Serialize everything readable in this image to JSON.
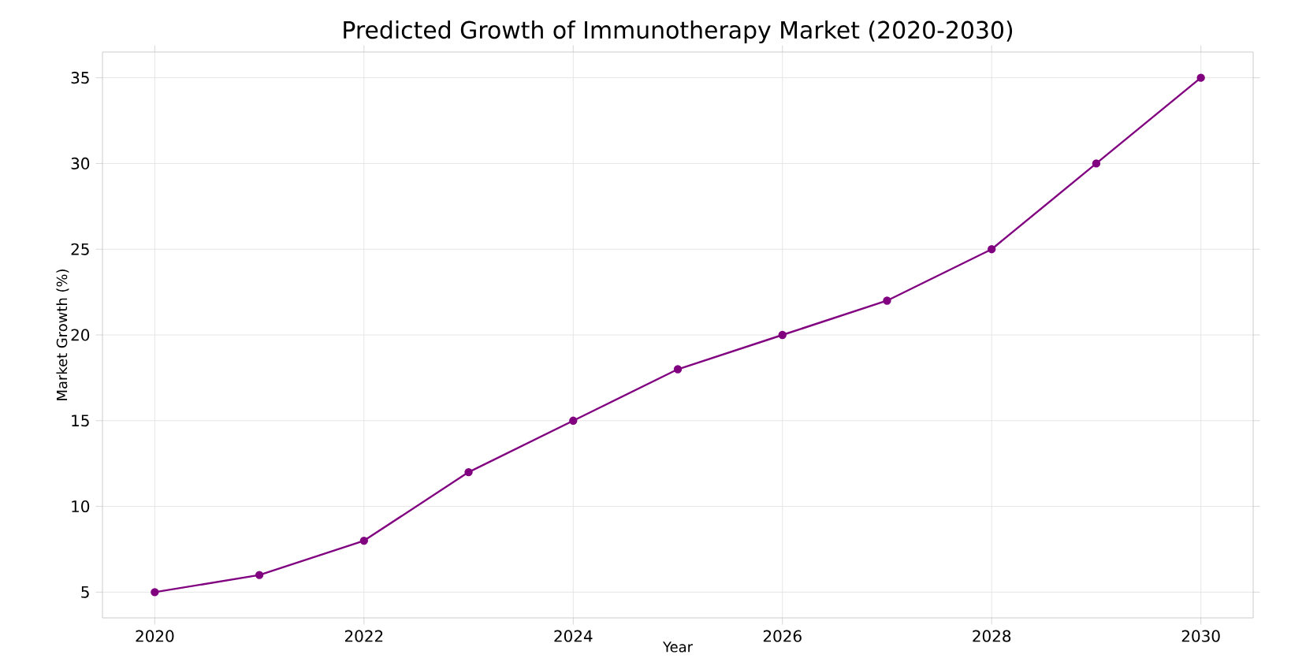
{
  "chart_data": {
    "type": "line",
    "title": "Predicted Growth of Immunotherapy Market (2020-2030)",
    "xlabel": "Year",
    "ylabel": "Market Growth (%)",
    "x": [
      2020,
      2021,
      2022,
      2023,
      2024,
      2025,
      2026,
      2027,
      2028,
      2029,
      2030
    ],
    "series": [
      {
        "color": "#800080",
        "values": [
          5,
          6,
          8,
          12,
          15,
          18,
          20,
          22,
          25,
          30,
          35
        ]
      }
    ],
    "xlim": [
      2019.5,
      2030.5
    ],
    "ylim": [
      3.5,
      36.5
    ],
    "xticks": [
      2020,
      2022,
      2024,
      2026,
      2028,
      2030
    ],
    "yticks": [
      5,
      10,
      15,
      20,
      25,
      30,
      35
    ],
    "grid": true,
    "marker": "circle",
    "line_style": "solid"
  }
}
